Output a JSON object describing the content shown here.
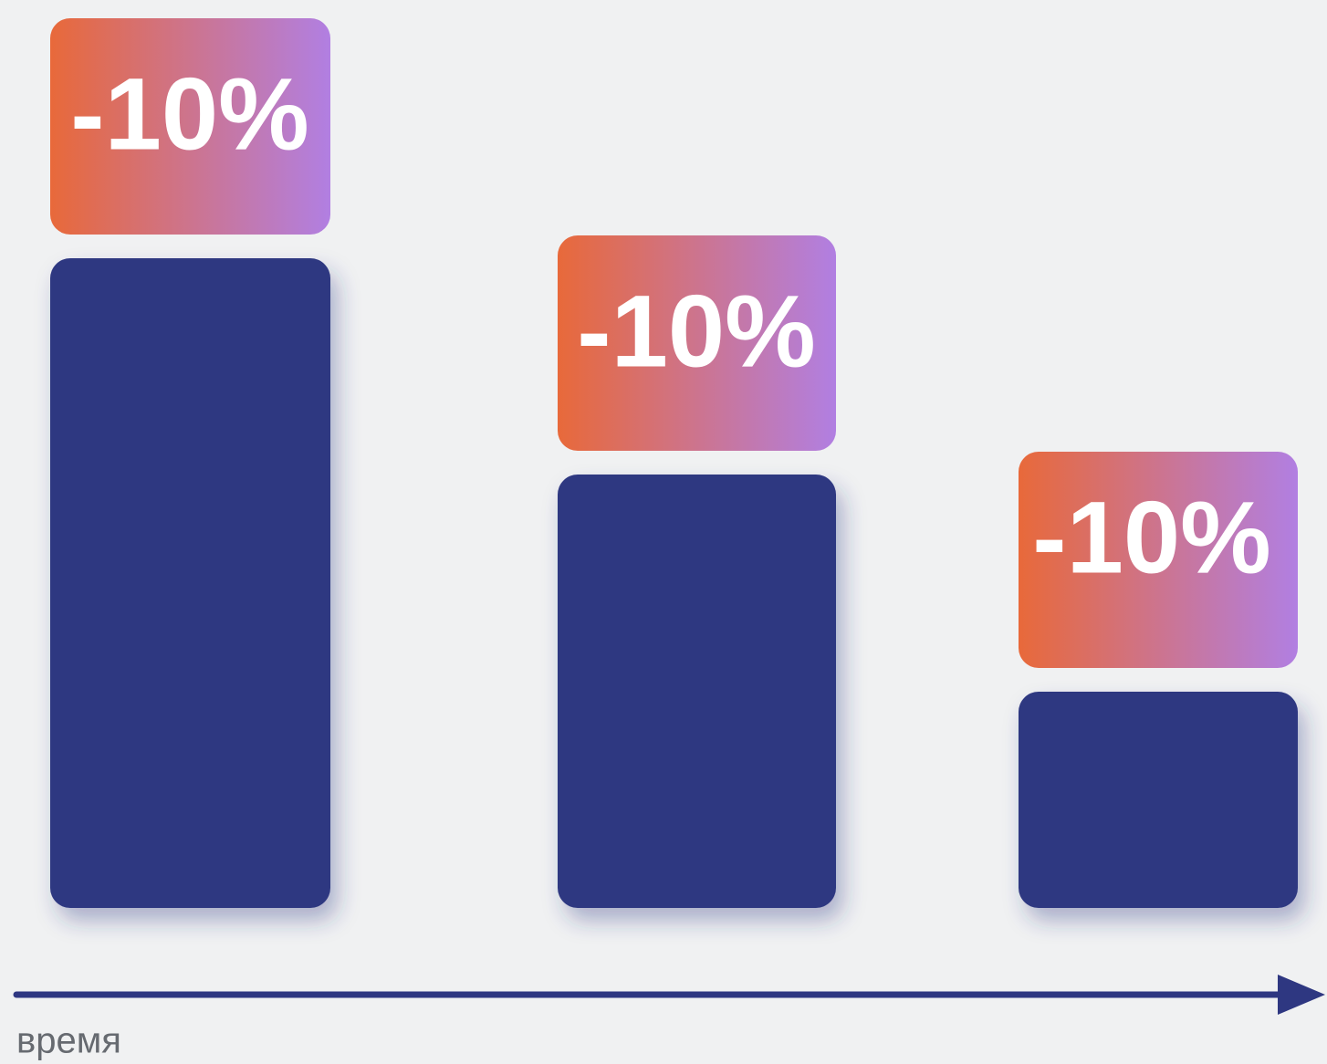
{
  "badges": [
    {
      "label": "-10%"
    },
    {
      "label": "-10%"
    },
    {
      "label": "-10%"
    }
  ],
  "axis_label": "время"
}
